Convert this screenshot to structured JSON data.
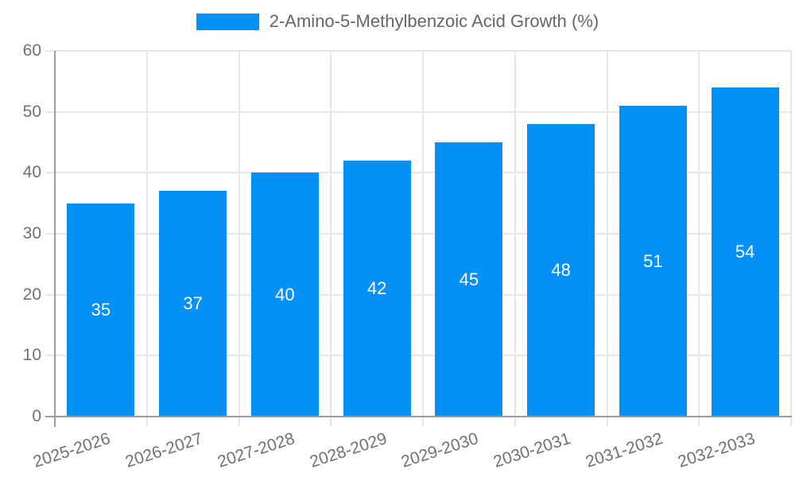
{
  "legend": {
    "label": "2-Amino-5-Methylbenzoic Acid Growth (%)"
  },
  "colors": {
    "bar": "#0590f8",
    "grid": "#e7e7e7",
    "axis": "#9d9d9d",
    "tick_text": "#717171",
    "legend_text": "#666666",
    "value_text": "#ffffff",
    "background": "#ffffff"
  },
  "chart_data": {
    "type": "bar",
    "title": "",
    "series_label": "2-Amino-5-Methylbenzoic Acid Growth (%)",
    "categories": [
      "2025-2026",
      "2026-2027",
      "2027-2028",
      "2028-2029",
      "2029-2030",
      "2030-2031",
      "2031-2032",
      "2032-2033"
    ],
    "values": [
      35,
      37,
      40,
      42,
      45,
      48,
      51,
      54
    ],
    "value_labels": [
      "35",
      "37",
      "40",
      "42",
      "45",
      "48",
      "51",
      "54"
    ],
    "value_label_position": "inside-center",
    "xlabel": "",
    "ylabel": "",
    "ylim": [
      0,
      60
    ],
    "yticks": [
      0,
      10,
      20,
      30,
      40,
      50,
      60
    ],
    "grid": true,
    "legend_position": "top",
    "x_tick_rotation_deg": -18
  }
}
